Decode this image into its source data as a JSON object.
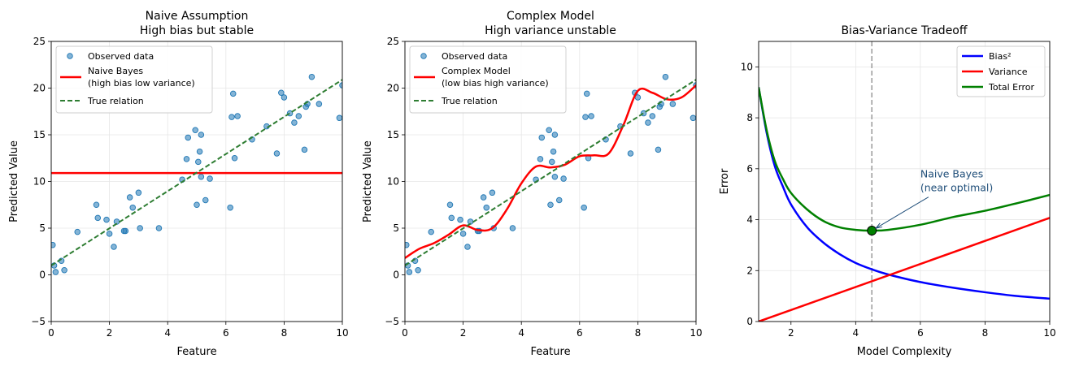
{
  "chart_data": [
    {
      "type": "scatter",
      "title": [
        "Naive Assumption",
        "High bias but stable"
      ],
      "xlabel": "Feature",
      "ylabel": "Predicted Value",
      "xlim": [
        0,
        10
      ],
      "ylim": [
        -5,
        25
      ],
      "xticks": [
        0,
        2,
        4,
        6,
        8,
        10
      ],
      "yticks": [
        -5,
        0,
        5,
        10,
        15,
        20,
        25
      ],
      "grid": true,
      "legend": "top-left",
      "scatter": {
        "name": "Observed data",
        "color": "#1f77b4",
        "points": [
          [
            0.05,
            3.2
          ],
          [
            0.1,
            1.0
          ],
          [
            0.15,
            0.3
          ],
          [
            0.35,
            1.5
          ],
          [
            0.45,
            0.5
          ],
          [
            0.9,
            4.6
          ],
          [
            1.55,
            7.5
          ],
          [
            1.6,
            6.1
          ],
          [
            1.9,
            5.9
          ],
          [
            2.0,
            4.4
          ],
          [
            2.15,
            3.0
          ],
          [
            2.25,
            5.7
          ],
          [
            2.5,
            4.7
          ],
          [
            2.55,
            4.7
          ],
          [
            2.7,
            8.3
          ],
          [
            2.8,
            7.2
          ],
          [
            3.0,
            8.8
          ],
          [
            3.05,
            5.0
          ],
          [
            3.7,
            5.0
          ],
          [
            4.5,
            10.2
          ],
          [
            4.65,
            12.4
          ],
          [
            4.7,
            14.7
          ],
          [
            4.95,
            15.5
          ],
          [
            5.0,
            7.5
          ],
          [
            5.05,
            12.1
          ],
          [
            5.1,
            13.2
          ],
          [
            5.15,
            15.0
          ],
          [
            5.15,
            10.5
          ],
          [
            5.3,
            8.0
          ],
          [
            5.45,
            10.3
          ],
          [
            6.15,
            7.2
          ],
          [
            6.2,
            16.9
          ],
          [
            6.25,
            19.4
          ],
          [
            6.3,
            12.5
          ],
          [
            6.4,
            17.0
          ],
          [
            6.9,
            14.5
          ],
          [
            7.4,
            15.9
          ],
          [
            7.75,
            13.0
          ],
          [
            7.9,
            19.5
          ],
          [
            8.0,
            19.0
          ],
          [
            8.2,
            17.3
          ],
          [
            8.35,
            16.3
          ],
          [
            8.5,
            17.0
          ],
          [
            8.7,
            13.4
          ],
          [
            8.75,
            18.0
          ],
          [
            8.8,
            18.3
          ],
          [
            8.95,
            21.2
          ],
          [
            9.2,
            18.3
          ],
          [
            9.9,
            16.8
          ],
          [
            10.0,
            20.3
          ]
        ]
      },
      "lines": [
        {
          "name": "Naive Bayes\n(high bias low variance)",
          "color": "#ff0000",
          "style": "solid",
          "x": [
            0,
            10
          ],
          "y": [
            10.9,
            10.9
          ]
        },
        {
          "name": "True relation",
          "color": "#2e7d32",
          "style": "dashed",
          "x": [
            0,
            10
          ],
          "y": [
            1.0,
            20.9
          ]
        }
      ]
    },
    {
      "type": "scatter",
      "title": [
        "Complex Model",
        "High variance unstable"
      ],
      "xlabel": "Feature",
      "ylabel": "Predicted Value",
      "xlim": [
        0,
        10
      ],
      "ylim": [
        -5,
        25
      ],
      "xticks": [
        0,
        2,
        4,
        6,
        8,
        10
      ],
      "yticks": [
        -5,
        0,
        5,
        10,
        15,
        20,
        25
      ],
      "grid": true,
      "legend": "top-left",
      "scatter": {
        "name": "Observed data",
        "color": "#1f77b4",
        "points": [
          [
            0.05,
            3.2
          ],
          [
            0.1,
            1.0
          ],
          [
            0.15,
            0.3
          ],
          [
            0.35,
            1.5
          ],
          [
            0.45,
            0.5
          ],
          [
            0.9,
            4.6
          ],
          [
            1.55,
            7.5
          ],
          [
            1.6,
            6.1
          ],
          [
            1.9,
            5.9
          ],
          [
            2.0,
            4.4
          ],
          [
            2.15,
            3.0
          ],
          [
            2.25,
            5.7
          ],
          [
            2.5,
            4.7
          ],
          [
            2.55,
            4.7
          ],
          [
            2.7,
            8.3
          ],
          [
            2.8,
            7.2
          ],
          [
            3.0,
            8.8
          ],
          [
            3.05,
            5.0
          ],
          [
            3.7,
            5.0
          ],
          [
            4.5,
            10.2
          ],
          [
            4.65,
            12.4
          ],
          [
            4.7,
            14.7
          ],
          [
            4.95,
            15.5
          ],
          [
            5.0,
            7.5
          ],
          [
            5.05,
            12.1
          ],
          [
            5.1,
            13.2
          ],
          [
            5.15,
            15.0
          ],
          [
            5.15,
            10.5
          ],
          [
            5.3,
            8.0
          ],
          [
            5.45,
            10.3
          ],
          [
            6.15,
            7.2
          ],
          [
            6.2,
            16.9
          ],
          [
            6.25,
            19.4
          ],
          [
            6.3,
            12.5
          ],
          [
            6.4,
            17.0
          ],
          [
            6.9,
            14.5
          ],
          [
            7.4,
            15.9
          ],
          [
            7.75,
            13.0
          ],
          [
            7.9,
            19.5
          ],
          [
            8.0,
            19.0
          ],
          [
            8.2,
            17.3
          ],
          [
            8.35,
            16.3
          ],
          [
            8.5,
            17.0
          ],
          [
            8.7,
            13.4
          ],
          [
            8.75,
            18.0
          ],
          [
            8.8,
            18.3
          ],
          [
            8.95,
            21.2
          ],
          [
            9.2,
            18.3
          ],
          [
            9.9,
            16.8
          ],
          [
            10.0,
            20.3
          ]
        ]
      },
      "lines": [
        {
          "name": "Complex Model\n(low bias high variance)",
          "color": "#ff0000",
          "style": "solid",
          "smooth": true,
          "x": [
            0,
            0.5,
            1,
            1.5,
            2,
            2.5,
            3,
            3.5,
            4,
            4.5,
            5,
            5.5,
            6,
            6.5,
            7,
            7.5,
            8,
            8.5,
            9,
            9.5,
            10
          ],
          "y": [
            1.8,
            2.8,
            3.4,
            4.3,
            5.3,
            4.8,
            5.0,
            7.0,
            9.8,
            11.6,
            11.5,
            11.8,
            12.7,
            12.8,
            13.0,
            16.0,
            19.7,
            19.5,
            18.8,
            19.0,
            20.3
          ]
        },
        {
          "name": "True relation",
          "color": "#2e7d32",
          "style": "dashed",
          "x": [
            0,
            10
          ],
          "y": [
            1.0,
            20.9
          ]
        }
      ]
    },
    {
      "type": "line",
      "title": [
        "Bias-Variance Tradeoff"
      ],
      "xlabel": "Model Complexity",
      "ylabel": "Error",
      "xlim": [
        1,
        10
      ],
      "ylim": [
        0,
        11
      ],
      "xticks": [
        2,
        4,
        6,
        8,
        10
      ],
      "yticks": [
        0,
        2,
        4,
        6,
        8,
        10
      ],
      "grid": true,
      "legend": "top-right",
      "series": [
        {
          "name": "Bias²",
          "color": "#0000ff",
          "x": [
            1,
            1.25,
            1.5,
            1.75,
            2,
            2.5,
            3,
            3.5,
            4,
            4.5,
            5,
            6,
            7,
            8,
            9,
            10
          ],
          "y": [
            9.2,
            7.4,
            6.1,
            5.3,
            4.6,
            3.7,
            3.1,
            2.65,
            2.3,
            2.05,
            1.85,
            1.55,
            1.33,
            1.15,
            1.0,
            0.9
          ]
        },
        {
          "name": "Variance",
          "color": "#ff0000",
          "x": [
            1,
            10
          ],
          "y": [
            0.0,
            4.07
          ]
        },
        {
          "name": "Total Error",
          "color": "#008000",
          "x": [
            1,
            1.25,
            1.5,
            1.75,
            2,
            2.5,
            3,
            3.5,
            4,
            4.5,
            5,
            6,
            7,
            8,
            9,
            10
          ],
          "y": [
            9.2,
            7.5,
            6.3,
            5.6,
            5.05,
            4.4,
            3.95,
            3.7,
            3.6,
            3.57,
            3.6,
            3.8,
            4.1,
            4.35,
            4.65,
            4.97
          ]
        }
      ],
      "vline": {
        "x": 4.5,
        "color": "#999999",
        "style": "dashed"
      },
      "marker": {
        "x": 4.5,
        "y": 3.57,
        "color": "#008000"
      },
      "annotation": {
        "text": [
          "Naive Bayes",
          "(near optimal)"
        ],
        "x": 6.0,
        "y": 5.4,
        "arrow_to": [
          4.5,
          3.57
        ],
        "color": "#1f4e79"
      }
    }
  ]
}
